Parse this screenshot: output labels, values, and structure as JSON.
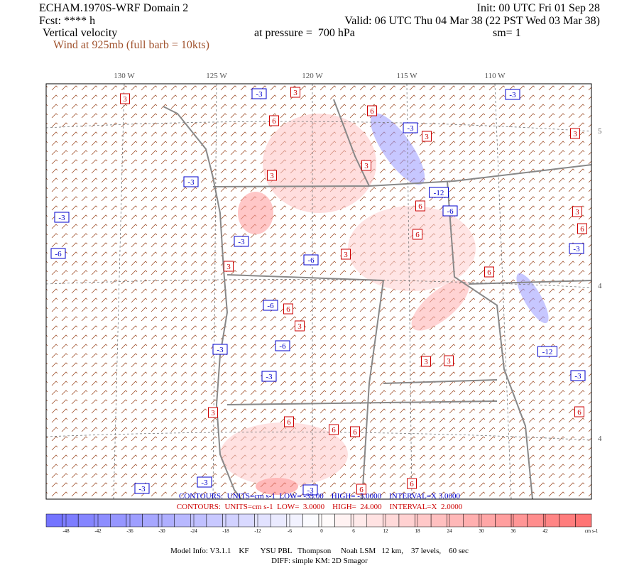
{
  "header": {
    "title": "ECHAM.1970S-WRF Domain 2",
    "init": "Init: 00 UTC Fri 01 Sep 28",
    "forecast": "Fcst: **** h",
    "valid": "Valid: 06 UTC Thu 04 Mar 38 (22 PST Wed 03 Mar 38)",
    "field": "Vertical velocity",
    "level": "at pressure =  700 hPa",
    "smoothing": "sm= 1",
    "wind": "Wind at 925mb (full barb = 10kts)"
  },
  "map": {
    "longitude_labels": [
      "130 W",
      "125 W",
      "120 W",
      "115 W",
      "110 W"
    ],
    "latitude_labels": [
      "5",
      "4",
      "4"
    ],
    "contour_labels": [
      -3,
      -3,
      -3,
      -3,
      -3,
      -3,
      -3,
      -3,
      -3,
      -3,
      -3,
      -3,
      -3,
      -6,
      -6,
      -6,
      -6,
      -6,
      -12,
      -12,
      3,
      3,
      3,
      3,
      3,
      3,
      3,
      3,
      3,
      3,
      3,
      3,
      3,
      6,
      6,
      6,
      6,
      6,
      6,
      6,
      6,
      6,
      6,
      6,
      6,
      6
    ]
  },
  "contour_info": {
    "negative": "CONTOURS:  UNITS=cm s-1  LOW= -33.00    HIGH= -3.0000    INTERVAL=X 3.0000",
    "positive": "CONTOURS:  UNITS=cm s-1  LOW=  3.0000    HIGH=  24.000    INTERVAL=X  2.0000"
  },
  "colorbar": {
    "ticks": [
      -48,
      -42,
      -36,
      -30,
      -24,
      -18,
      -12,
      -6,
      0,
      6,
      12,
      18,
      24,
      30,
      36,
      42
    ],
    "unit": "cm s-1"
  },
  "footer": {
    "model_info": "Model Info: V3.1.1    KF      YSU PBL   Thompson     Noah LSM   12 km,    37 levels,    60 sec",
    "diffusion": "DIFF: simple KM: 2D Smagor"
  }
}
